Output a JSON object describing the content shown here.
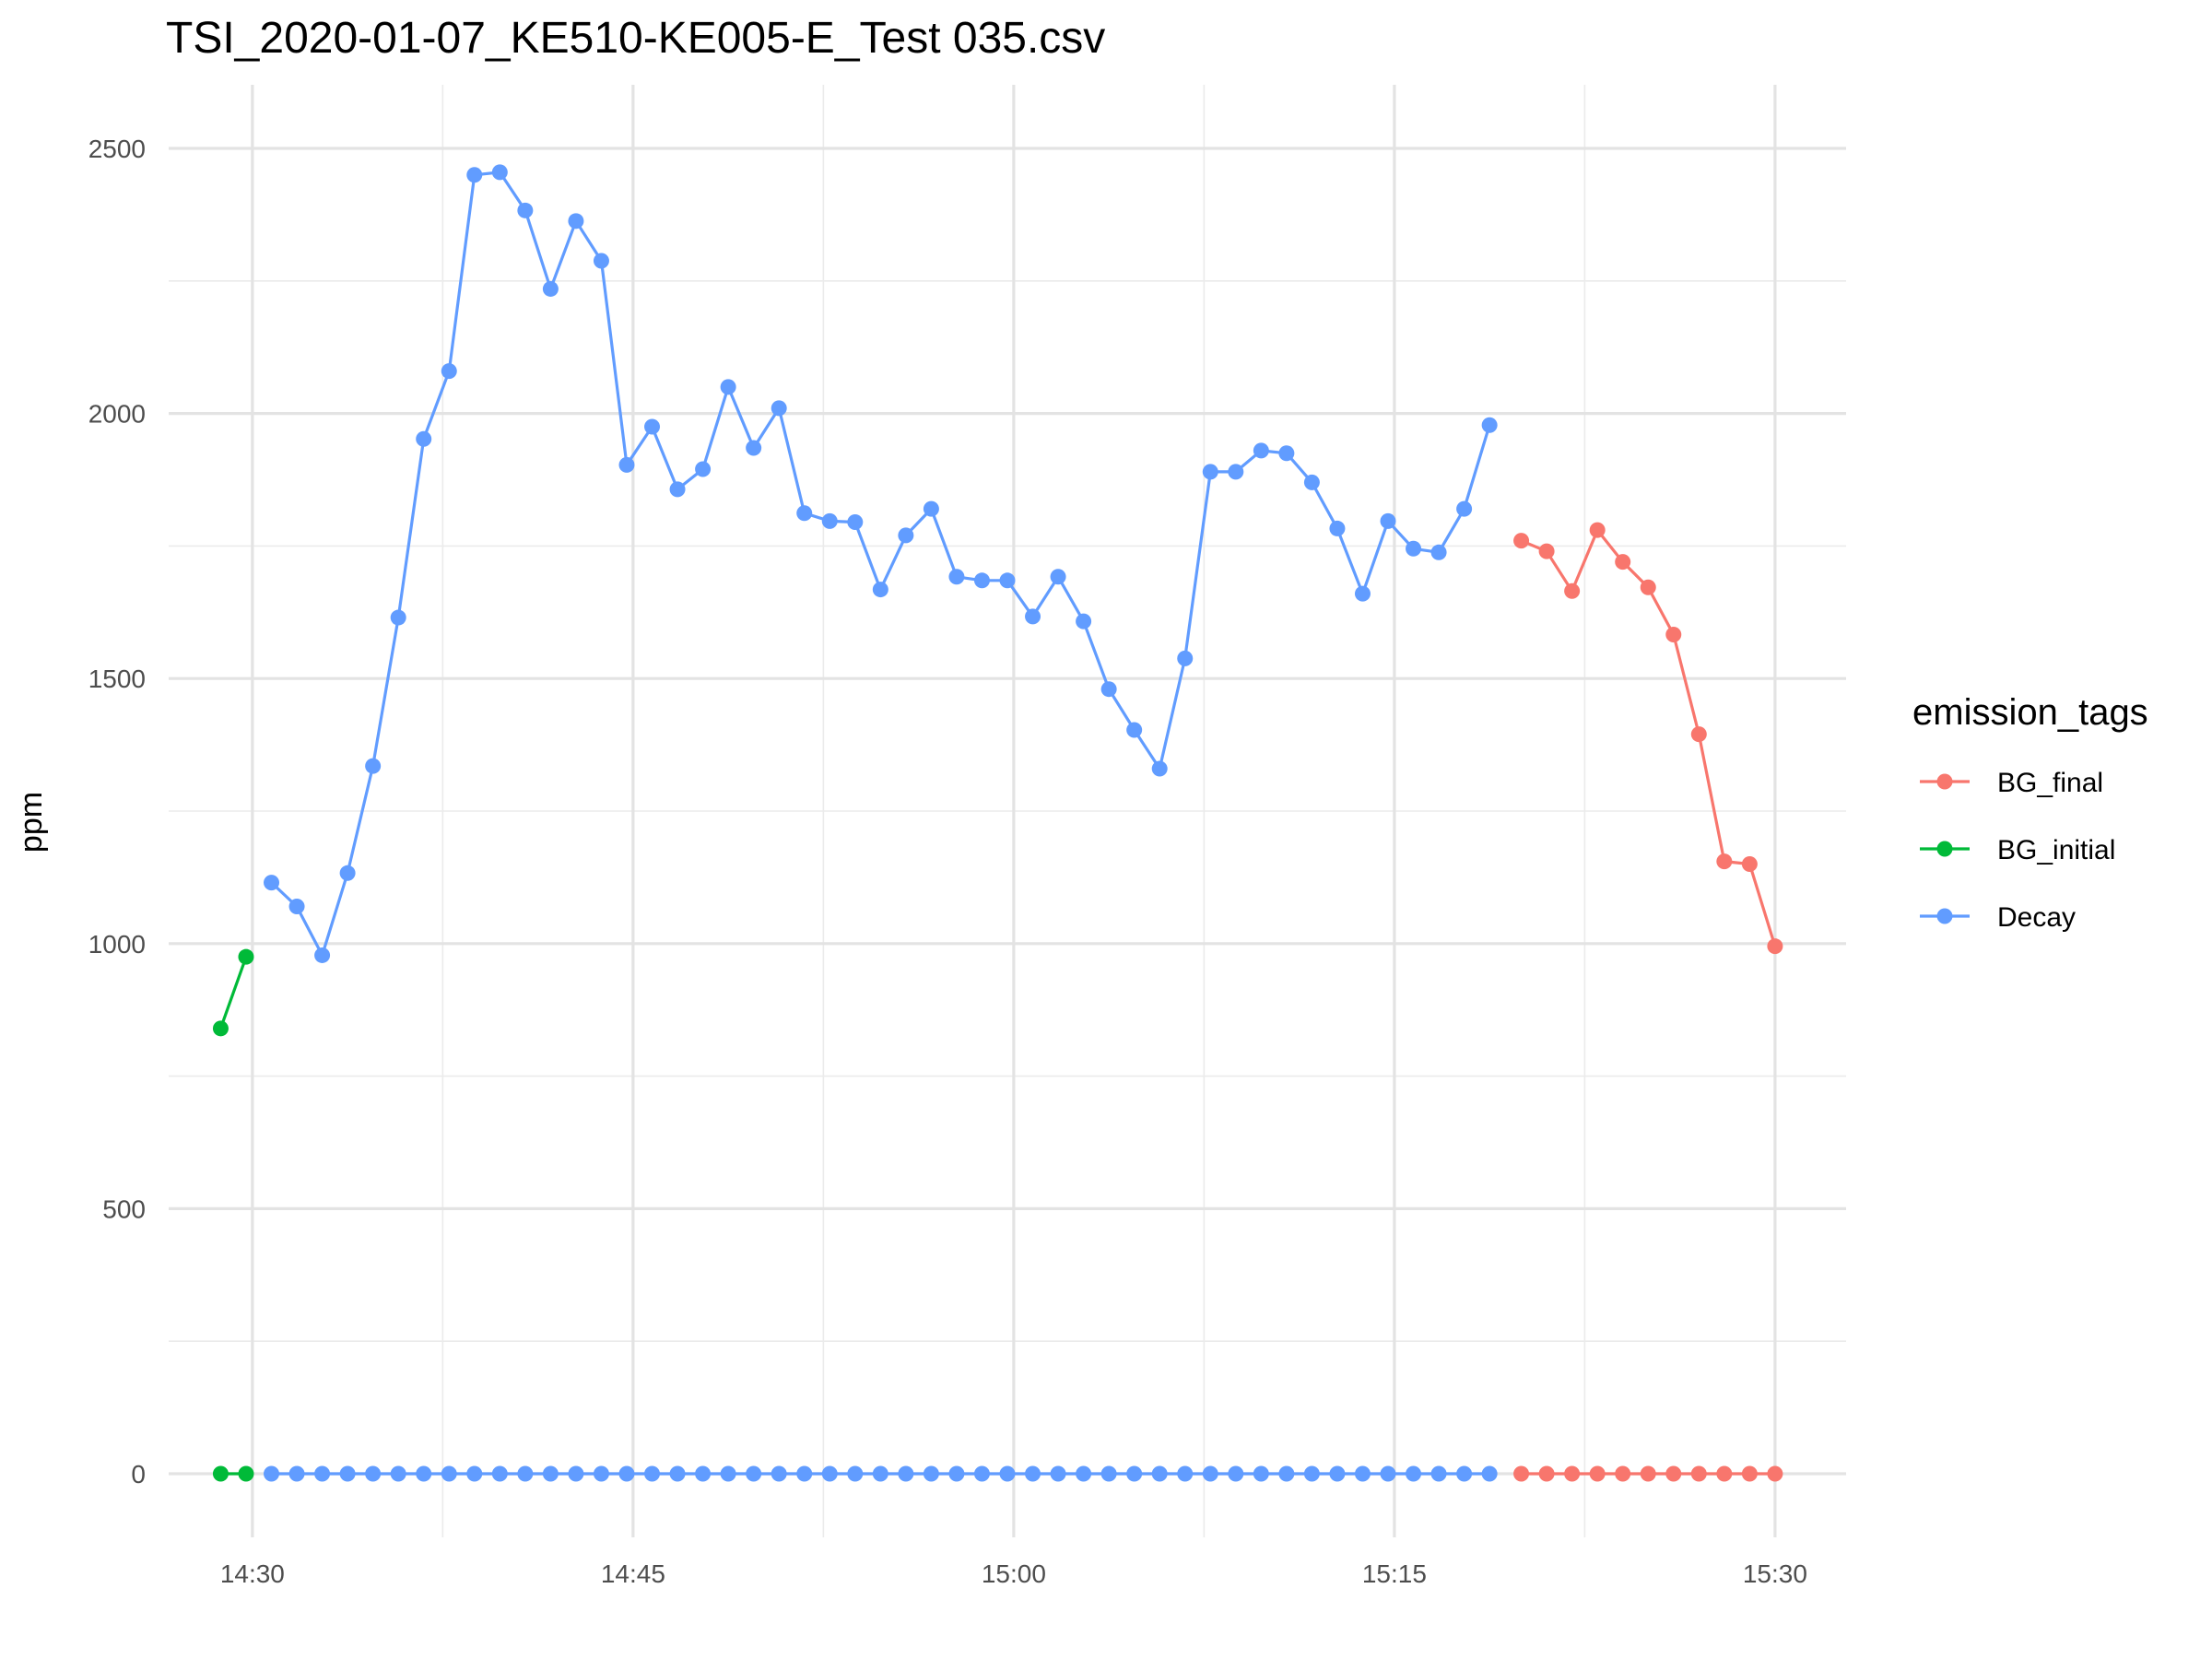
{
  "chart_data": {
    "type": "line",
    "title": "TSI_2020-01-07_KE510-KE005-E_Test 035.csv",
    "xlabel": "",
    "ylabel": "ppm",
    "x_unit": "time (HH:MM)",
    "x_ticks": [
      "14:30",
      "14:45",
      "15:00",
      "15:15",
      "15:30"
    ],
    "x_tick_values": [
      870,
      885,
      900,
      915,
      930
    ],
    "xlim": [
      866.7,
      932.8
    ],
    "y_ticks": [
      "0",
      "500",
      "1000",
      "1500",
      "2000",
      "2500"
    ],
    "y_tick_values": [
      0,
      500,
      1000,
      1500,
      2000,
      2500
    ],
    "ylim": [
      -120,
      2620
    ],
    "grid": true,
    "legend": {
      "title": "emission_tags",
      "position": "right"
    },
    "series": [
      {
        "name": "BG_final",
        "color": "#F8766D",
        "x": [
          920,
          921,
          922,
          923,
          924,
          925,
          926,
          927,
          928,
          929,
          930
        ],
        "y": [
          1760,
          1740,
          1665,
          1780,
          1720,
          1672,
          1583,
          1395,
          1155,
          1150,
          995
        ]
      },
      {
        "name": "BG_initial",
        "color": "#00BA38",
        "x": [
          868.75,
          869.75
        ],
        "y": [
          840,
          975
        ]
      },
      {
        "name": "Decay",
        "color": "#619CFF",
        "x": [
          870.75,
          871.75,
          872.75,
          873.75,
          874.75,
          875.75,
          876.75,
          877.75,
          878.75,
          879.75,
          880.75,
          881.75,
          882.75,
          883.75,
          884.75,
          885.75,
          886.75,
          887.75,
          888.75,
          889.75,
          890.75,
          891.75,
          892.75,
          893.75,
          894.75,
          895.75,
          896.75,
          897.75,
          898.75,
          899.75,
          900.75,
          901.75,
          902.75,
          903.75,
          904.75,
          905.75,
          906.75,
          907.75,
          908.75,
          909.75,
          910.75,
          911.75,
          912.75,
          913.75,
          914.75,
          915.75,
          916.75,
          917.75,
          918.75
        ],
        "y": [
          1115,
          1070,
          978,
          1133,
          1335,
          1615,
          1952,
          2080,
          2450,
          2455,
          2383,
          2235,
          2363,
          2288,
          1903,
          1975,
          1857,
          1895,
          2050,
          1935,
          2010,
          1812,
          1797,
          1795,
          1668,
          1770,
          1820,
          1692,
          1685,
          1685,
          1617,
          1692,
          1608,
          1480,
          1403,
          1330,
          1538,
          1890,
          1890,
          1930,
          1925,
          1870,
          1783,
          1660,
          1797,
          1745,
          1738,
          1820,
          1978
        ]
      }
    ],
    "baseline_series": [
      {
        "name": "BG_initial",
        "color": "#00BA38",
        "x": [
          868.75,
          869.75
        ],
        "y": [
          0,
          0
        ]
      },
      {
        "name": "Decay",
        "color": "#619CFF",
        "x": [
          870.75,
          871.75,
          872.75,
          873.75,
          874.75,
          875.75,
          876.75,
          877.75,
          878.75,
          879.75,
          880.75,
          881.75,
          882.75,
          883.75,
          884.75,
          885.75,
          886.75,
          887.75,
          888.75,
          889.75,
          890.75,
          891.75,
          892.75,
          893.75,
          894.75,
          895.75,
          896.75,
          897.75,
          898.75,
          899.75,
          900.75,
          901.75,
          902.75,
          903.75,
          904.75,
          905.75,
          906.75,
          907.75,
          908.75,
          909.75,
          910.75,
          911.75,
          912.75,
          913.75,
          914.75,
          915.75,
          916.75,
          917.75,
          918.75
        ],
        "y": [
          0,
          0,
          0,
          0,
          0,
          0,
          0,
          0,
          0,
          0,
          0,
          0,
          0,
          0,
          0,
          0,
          0,
          0,
          0,
          0,
          0,
          0,
          0,
          0,
          0,
          0,
          0,
          0,
          0,
          0,
          0,
          0,
          0,
          0,
          0,
          0,
          0,
          0,
          0,
          0,
          0,
          0,
          0,
          0,
          0,
          0,
          0,
          0,
          0
        ]
      },
      {
        "name": "BG_final",
        "color": "#F8766D",
        "x": [
          920,
          921,
          922,
          923,
          924,
          925,
          926,
          927,
          928,
          929,
          930
        ],
        "y": [
          0,
          0,
          0,
          0,
          0,
          0,
          0,
          0,
          0,
          0,
          0
        ]
      }
    ]
  }
}
